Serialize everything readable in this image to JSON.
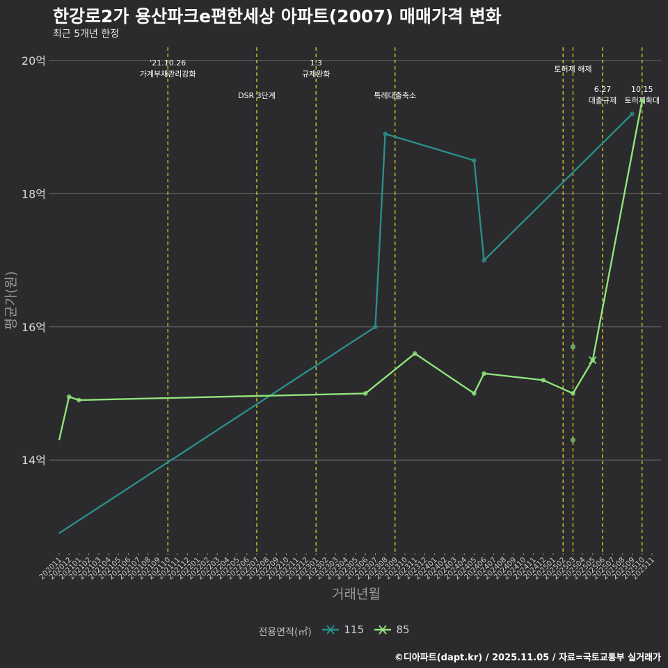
{
  "title": "한강로2가 용산파크e편한세상 아파트(2007) 매매가격 변화",
  "subtitle": "최근 5개년 한정",
  "caption": "©디아파트(dapt.kr) / 2025.11.05 / 자료=국토교통부 실거래가",
  "legend": {
    "title": "전용면적(㎡)",
    "items": [
      "115",
      "85"
    ]
  },
  "colors": {
    "background": "#2b2a2c",
    "grid": "#6b6b6b",
    "event_line": "#e5e52e",
    "s115": "#2a8f8a",
    "s85": "#90e47c"
  },
  "chart_data": {
    "type": "line",
    "xlabel": "거래년월",
    "ylabel": "평균가(원)",
    "ylim": [
      12.6,
      20.2
    ],
    "y_ticks": [
      14,
      16,
      18,
      20
    ],
    "y_tick_labels": [
      "14억",
      "16억",
      "18억",
      "20억"
    ],
    "x_ticks": [
      "202011",
      "202012",
      "202101",
      "202102",
      "202103",
      "202104",
      "202105",
      "202106",
      "202107",
      "202108",
      "202109",
      "202110",
      "202111",
      "202112",
      "202201",
      "202202",
      "202203",
      "202204",
      "202205",
      "202206",
      "202207",
      "202208",
      "202209",
      "202210",
      "202211",
      "202212",
      "202301",
      "202302",
      "202303",
      "202304",
      "202305",
      "202306",
      "202307",
      "202308",
      "202309",
      "202310",
      "202311",
      "202312",
      "202401",
      "202402",
      "202403",
      "202404",
      "202405",
      "202406",
      "202407",
      "202408",
      "202409",
      "202410",
      "202411",
      "202412",
      "202501",
      "202502",
      "202503",
      "202504",
      "202505",
      "202506",
      "202507",
      "202508",
      "202509",
      "202510",
      "202511"
    ],
    "series": [
      {
        "name": "115",
        "points": [
          [
            "202011",
            12.9
          ],
          [
            "202307",
            16.0
          ],
          [
            "202308",
            18.9
          ],
          [
            "202405",
            18.5
          ],
          [
            "202406",
            17.0
          ],
          [
            "202509",
            19.2
          ]
        ]
      },
      {
        "name": "85",
        "points": [
          [
            "202011",
            14.3
          ],
          [
            "202012",
            14.95
          ],
          [
            "202101",
            14.9
          ],
          [
            "202306",
            15.0
          ],
          [
            "202311",
            15.6
          ],
          [
            "202405",
            15.0
          ],
          [
            "202406",
            15.3
          ],
          [
            "202412",
            15.2
          ],
          [
            "202503",
            15.0
          ],
          [
            "202505",
            15.5
          ],
          [
            "202510",
            19.4
          ]
        ]
      }
    ],
    "scatter": [
      {
        "series": "85",
        "x": "202503",
        "y": 15.7
      },
      {
        "series": "85",
        "x": "202503",
        "y": 14.3
      }
    ],
    "cross_marks": [
      {
        "series": "85",
        "x": "202505",
        "y": 15.5
      }
    ],
    "events": [
      {
        "x": "202110",
        "lines": [
          "'21.10.26",
          "가계부채관리강화"
        ],
        "row": 1
      },
      {
        "x": "202207",
        "lines": [
          "DSR 3단계"
        ],
        "row": 2
      },
      {
        "x": "202301",
        "lines": [
          "1.3",
          "규제완화"
        ],
        "row": 1
      },
      {
        "x": "202309",
        "lines": [
          "특례대출축소"
        ],
        "row": 2
      },
      {
        "x": "202502",
        "lines": [],
        "row": 0
      },
      {
        "x": "202503",
        "lines": [
          "토허제 해제"
        ],
        "row": 1.4
      },
      {
        "x": "202506",
        "lines": [
          "6.27",
          "대출규제"
        ],
        "row": 3
      },
      {
        "x": "202510",
        "lines": [
          "10.15",
          "토허제확대"
        ],
        "row": 3
      }
    ]
  }
}
